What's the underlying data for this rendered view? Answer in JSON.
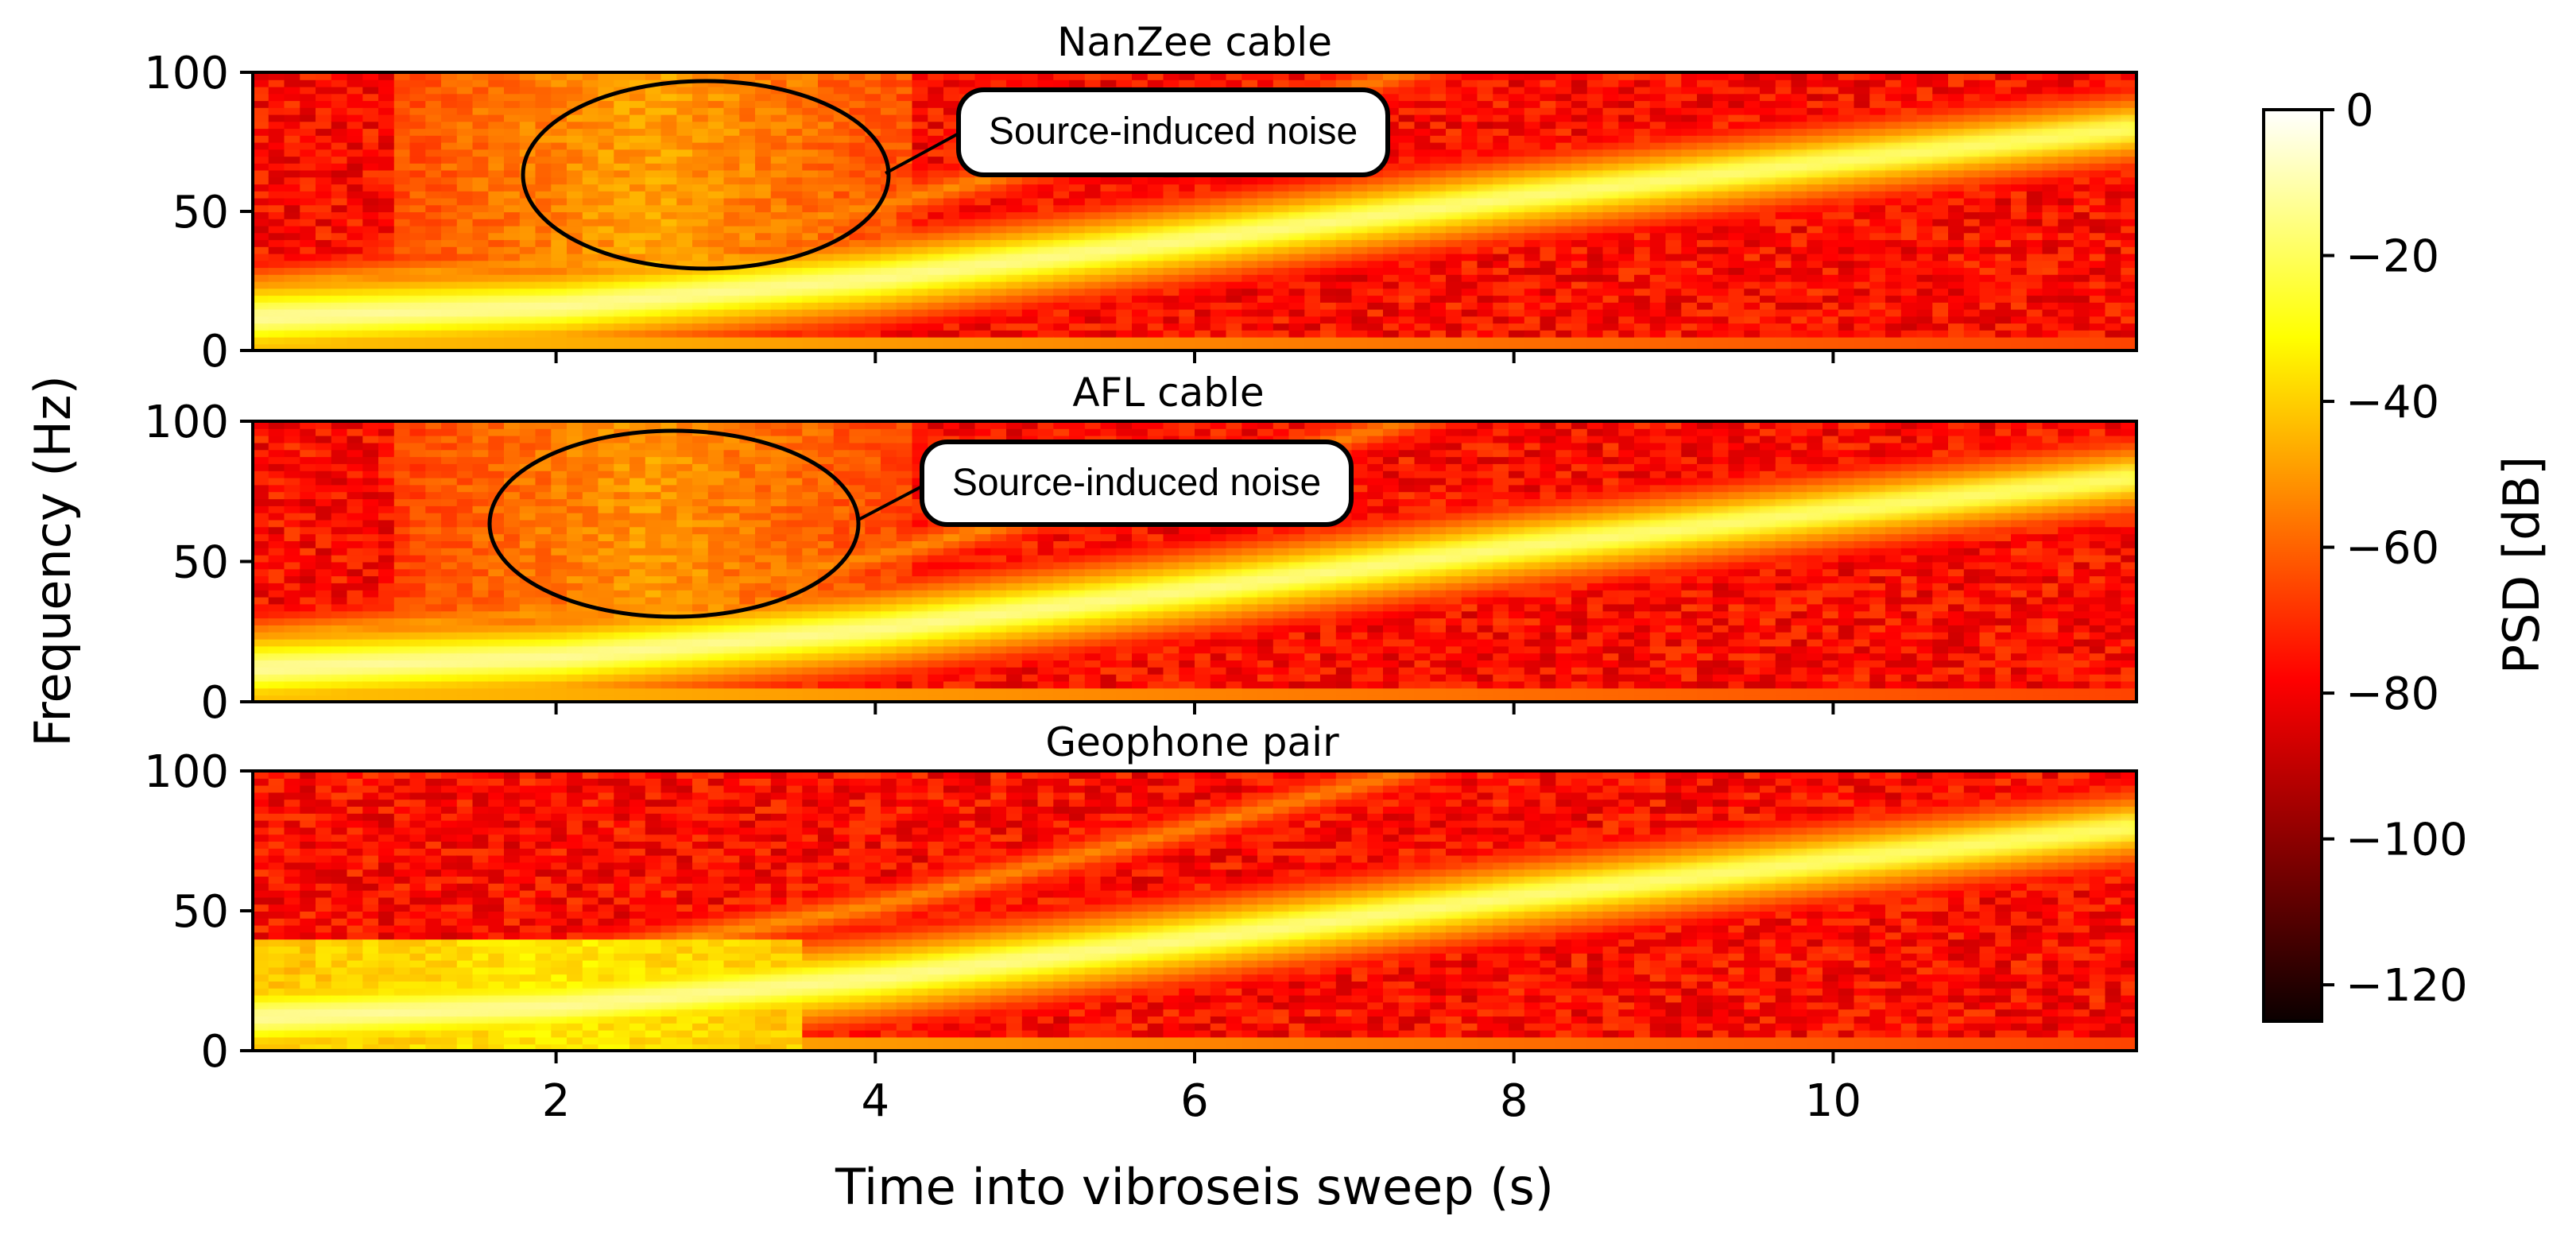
{
  "chart_data": {
    "type": "heatmap",
    "xlabel": "Time into vibroseis sweep (s)",
    "ylabel": "Frequency (Hz)",
    "xlim": [
      0.1,
      11.9
    ],
    "ylim": [
      0,
      100
    ],
    "x_ticks": [
      "2",
      "4",
      "6",
      "8",
      "10"
    ],
    "x_tick_values": [
      2,
      4,
      6,
      8,
      10
    ],
    "y_ticks": [
      "0",
      "50",
      "100"
    ],
    "y_tick_values": [
      0,
      50,
      100
    ],
    "colormap": "hot",
    "colorbar": {
      "label": "PSD [dB]",
      "range": [
        -125,
        0
      ],
      "ticks": [
        "0",
        "−20",
        "−40",
        "−60",
        "−80",
        "−100",
        "−120"
      ],
      "tick_values": [
        0,
        -20,
        -40,
        -60,
        -80,
        -100,
        -120
      ]
    },
    "sweep": {
      "fundamental_hz": [
        [
          0.1,
          12
        ],
        [
          2,
          16
        ],
        [
          4,
          26
        ],
        [
          6,
          40
        ],
        [
          8,
          55
        ],
        [
          10,
          68
        ],
        [
          11.9,
          80
        ]
      ]
    },
    "panels": [
      {
        "title": "NanZee cable",
        "annotation": "Source-induced noise"
      },
      {
        "title": "AFL cable",
        "annotation": "Source-induced noise"
      },
      {
        "title": "Geophone pair"
      }
    ]
  }
}
